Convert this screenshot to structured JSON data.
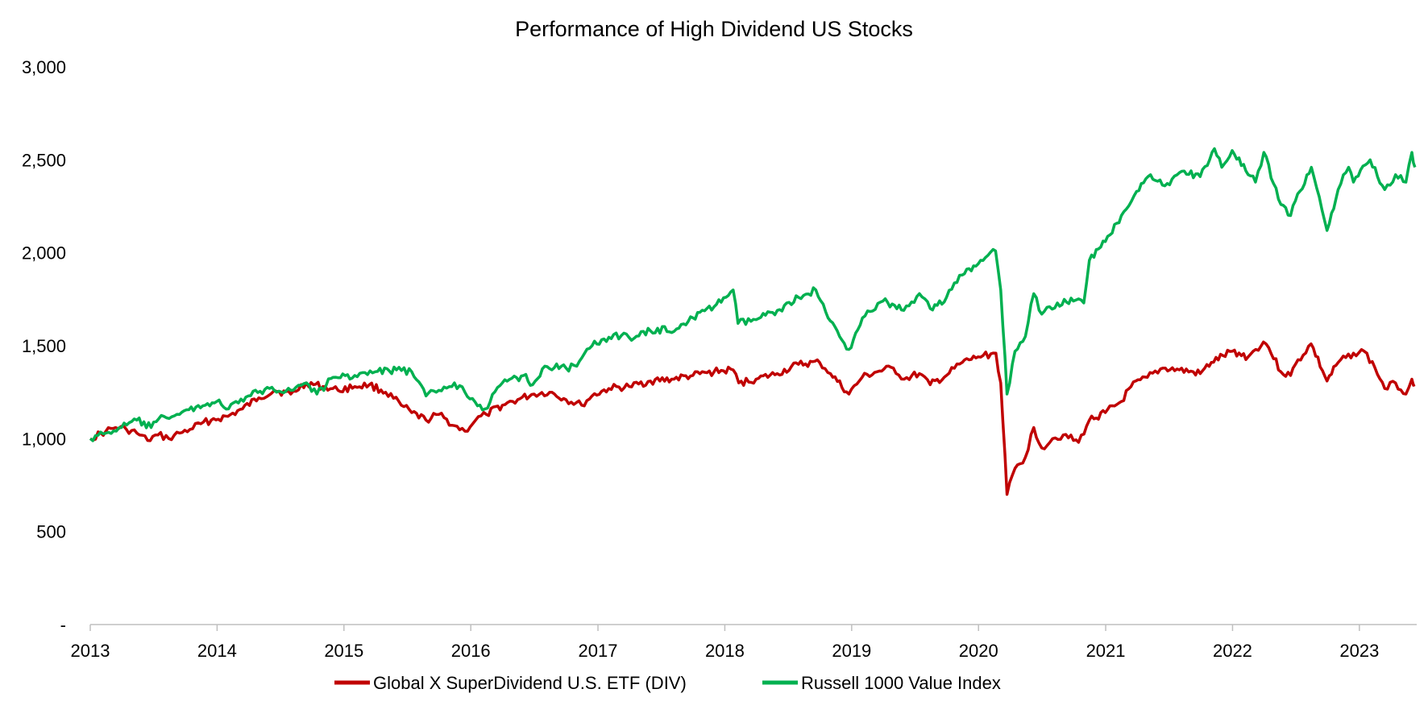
{
  "chart_data": {
    "type": "line",
    "title": "Performance of High Dividend US Stocks",
    "xlabel": "",
    "ylabel": "",
    "x_range": [
      "2013-01-01",
      "2023-06-15"
    ],
    "ylim": [
      0,
      3000
    ],
    "y_ticks": [
      {
        "value": 0,
        "label": "-"
      },
      {
        "value": 500,
        "label": "500"
      },
      {
        "value": 1000,
        "label": "1,000"
      },
      {
        "value": 1500,
        "label": "1,500"
      },
      {
        "value": 2000,
        "label": "2,000"
      },
      {
        "value": 2500,
        "label": "2,500"
      },
      {
        "value": 3000,
        "label": "3,000"
      }
    ],
    "x_ticks": [
      {
        "value": "2013-01-01",
        "label": "2013"
      },
      {
        "value": "2014-01-01",
        "label": "2014"
      },
      {
        "value": "2015-01-01",
        "label": "2015"
      },
      {
        "value": "2016-01-01",
        "label": "2016"
      },
      {
        "value": "2017-01-01",
        "label": "2017"
      },
      {
        "value": "2018-01-01",
        "label": "2018"
      },
      {
        "value": "2019-01-01",
        "label": "2019"
      },
      {
        "value": "2020-01-01",
        "label": "2020"
      },
      {
        "value": "2021-01-01",
        "label": "2021"
      },
      {
        "value": "2022-01-01",
        "label": "2022"
      },
      {
        "value": "2023-01-01",
        "label": "2023"
      }
    ],
    "grid": false,
    "legend_position": "bottom",
    "series": [
      {
        "name": "Global X SuperDividend U.S. ETF (DIV)",
        "color": "#C00000",
        "points": [
          [
            "2013-01-01",
            1000
          ],
          [
            "2013-02-15",
            1040
          ],
          [
            "2013-03-15",
            1060
          ],
          [
            "2013-04-15",
            1050
          ],
          [
            "2013-05-15",
            1030
          ],
          [
            "2013-06-15",
            990
          ],
          [
            "2013-07-15",
            1020
          ],
          [
            "2013-08-15",
            1000
          ],
          [
            "2013-09-15",
            1030
          ],
          [
            "2013-10-15",
            1050
          ],
          [
            "2013-11-15",
            1080
          ],
          [
            "2013-12-15",
            1100
          ],
          [
            "2014-02-01",
            1120
          ],
          [
            "2014-03-15",
            1160
          ],
          [
            "2014-05-01",
            1220
          ],
          [
            "2014-06-15",
            1260
          ],
          [
            "2014-08-01",
            1240
          ],
          [
            "2014-09-15",
            1300
          ],
          [
            "2014-11-01",
            1280
          ],
          [
            "2014-12-15",
            1260
          ],
          [
            "2015-02-01",
            1280
          ],
          [
            "2015-03-15",
            1290
          ],
          [
            "2015-05-01",
            1250
          ],
          [
            "2015-06-15",
            1180
          ],
          [
            "2015-07-15",
            1140
          ],
          [
            "2015-08-25",
            1100
          ],
          [
            "2015-10-01",
            1130
          ],
          [
            "2015-11-15",
            1070
          ],
          [
            "2015-12-15",
            1040
          ],
          [
            "2016-01-15",
            1100
          ],
          [
            "2016-02-15",
            1130
          ],
          [
            "2016-04-01",
            1180
          ],
          [
            "2016-05-15",
            1210
          ],
          [
            "2016-07-01",
            1240
          ],
          [
            "2016-08-15",
            1250
          ],
          [
            "2016-10-01",
            1210
          ],
          [
            "2016-11-15",
            1180
          ],
          [
            "2016-12-15",
            1230
          ],
          [
            "2017-02-01",
            1270
          ],
          [
            "2017-04-01",
            1280
          ],
          [
            "2017-06-01",
            1310
          ],
          [
            "2017-08-01",
            1320
          ],
          [
            "2017-10-01",
            1340
          ],
          [
            "2017-12-01",
            1360
          ],
          [
            "2018-01-25",
            1370
          ],
          [
            "2018-02-10",
            1300
          ],
          [
            "2018-04-01",
            1320
          ],
          [
            "2018-06-01",
            1350
          ],
          [
            "2018-08-01",
            1400
          ],
          [
            "2018-10-01",
            1410
          ],
          [
            "2018-11-01",
            1350
          ],
          [
            "2018-12-24",
            1240
          ],
          [
            "2019-01-31",
            1330
          ],
          [
            "2019-03-15",
            1360
          ],
          [
            "2019-05-01",
            1380
          ],
          [
            "2019-06-01",
            1320
          ],
          [
            "2019-07-15",
            1350
          ],
          [
            "2019-08-15",
            1290
          ],
          [
            "2019-10-01",
            1340
          ],
          [
            "2019-11-15",
            1410
          ],
          [
            "2019-12-31",
            1440
          ],
          [
            "2020-02-20",
            1460
          ],
          [
            "2020-03-05",
            1300
          ],
          [
            "2020-03-23",
            700
          ],
          [
            "2020-04-15",
            840
          ],
          [
            "2020-05-15",
            900
          ],
          [
            "2020-06-08",
            1060
          ],
          [
            "2020-07-01",
            950
          ],
          [
            "2020-08-01",
            1000
          ],
          [
            "2020-09-01",
            1020
          ],
          [
            "2020-10-15",
            980
          ],
          [
            "2020-11-15",
            1100
          ],
          [
            "2020-12-31",
            1140
          ],
          [
            "2021-02-15",
            1200
          ],
          [
            "2021-03-15",
            1280
          ],
          [
            "2021-05-01",
            1330
          ],
          [
            "2021-06-15",
            1380
          ],
          [
            "2021-08-01",
            1370
          ],
          [
            "2021-09-30",
            1350
          ],
          [
            "2021-11-01",
            1410
          ],
          [
            "2021-12-31",
            1470
          ],
          [
            "2022-02-15",
            1440
          ],
          [
            "2022-03-31",
            1520
          ],
          [
            "2022-04-15",
            1490
          ],
          [
            "2022-05-20",
            1360
          ],
          [
            "2022-06-17",
            1340
          ],
          [
            "2022-07-01",
            1400
          ],
          [
            "2022-08-15",
            1510
          ],
          [
            "2022-09-30",
            1310
          ],
          [
            "2022-11-01",
            1410
          ],
          [
            "2022-12-15",
            1460
          ],
          [
            "2023-01-15",
            1470
          ],
          [
            "2023-02-15",
            1380
          ],
          [
            "2023-03-15",
            1270
          ],
          [
            "2023-04-15",
            1300
          ],
          [
            "2023-05-15",
            1240
          ],
          [
            "2023-06-01",
            1320
          ],
          [
            "2023-06-10",
            1290
          ]
        ]
      },
      {
        "name": "Russell 1000 Value Index",
        "color": "#00B050",
        "points": [
          [
            "2013-01-01",
            1000
          ],
          [
            "2013-02-15",
            1030
          ],
          [
            "2013-04-01",
            1060
          ],
          [
            "2013-05-15",
            1100
          ],
          [
            "2013-06-25",
            1060
          ],
          [
            "2013-08-01",
            1120
          ],
          [
            "2013-09-15",
            1130
          ],
          [
            "2013-11-01",
            1170
          ],
          [
            "2013-12-31",
            1200
          ],
          [
            "2014-02-03",
            1160
          ],
          [
            "2014-04-01",
            1230
          ],
          [
            "2014-06-01",
            1270
          ],
          [
            "2014-08-01",
            1260
          ],
          [
            "2014-09-15",
            1300
          ],
          [
            "2014-10-15",
            1240
          ],
          [
            "2014-12-01",
            1330
          ],
          [
            "2015-02-01",
            1340
          ],
          [
            "2015-04-01",
            1360
          ],
          [
            "2015-06-01",
            1370
          ],
          [
            "2015-07-15",
            1360
          ],
          [
            "2015-08-25",
            1230
          ],
          [
            "2015-10-01",
            1260
          ],
          [
            "2015-11-15",
            1300
          ],
          [
            "2015-12-15",
            1250
          ],
          [
            "2016-02-11",
            1160
          ],
          [
            "2016-04-01",
            1300
          ],
          [
            "2016-06-01",
            1340
          ],
          [
            "2016-06-27",
            1290
          ],
          [
            "2016-08-01",
            1390
          ],
          [
            "2016-10-01",
            1380
          ],
          [
            "2016-11-01",
            1390
          ],
          [
            "2016-12-15",
            1500
          ],
          [
            "2017-02-15",
            1560
          ],
          [
            "2017-04-15",
            1540
          ],
          [
            "2017-06-01",
            1580
          ],
          [
            "2017-08-15",
            1590
          ],
          [
            "2017-10-01",
            1650
          ],
          [
            "2017-12-01",
            1710
          ],
          [
            "2018-01-25",
            1800
          ],
          [
            "2018-02-08",
            1620
          ],
          [
            "2018-04-01",
            1640
          ],
          [
            "2018-06-01",
            1690
          ],
          [
            "2018-08-01",
            1760
          ],
          [
            "2018-09-20",
            1800
          ],
          [
            "2018-10-25",
            1650
          ],
          [
            "2018-12-24",
            1480
          ],
          [
            "2019-02-01",
            1650
          ],
          [
            "2019-04-01",
            1740
          ],
          [
            "2019-05-31",
            1690
          ],
          [
            "2019-07-15",
            1780
          ],
          [
            "2019-08-15",
            1700
          ],
          [
            "2019-10-01",
            1760
          ],
          [
            "2019-11-15",
            1880
          ],
          [
            "2019-12-31",
            1940
          ],
          [
            "2020-02-19",
            2010
          ],
          [
            "2020-03-05",
            1800
          ],
          [
            "2020-03-23",
            1240
          ],
          [
            "2020-04-15",
            1470
          ],
          [
            "2020-05-15",
            1550
          ],
          [
            "2020-06-08",
            1780
          ],
          [
            "2020-07-01",
            1670
          ],
          [
            "2020-08-15",
            1730
          ],
          [
            "2020-09-30",
            1740
          ],
          [
            "2020-10-30",
            1730
          ],
          [
            "2020-11-15",
            1960
          ],
          [
            "2020-12-31",
            2060
          ],
          [
            "2021-02-15",
            2200
          ],
          [
            "2021-03-31",
            2330
          ],
          [
            "2021-05-10",
            2420
          ],
          [
            "2021-06-20",
            2360
          ],
          [
            "2021-08-15",
            2440
          ],
          [
            "2021-09-30",
            2410
          ],
          [
            "2021-11-10",
            2560
          ],
          [
            "2021-12-01",
            2460
          ],
          [
            "2021-12-31",
            2550
          ],
          [
            "2022-02-15",
            2420
          ],
          [
            "2022-03-08",
            2380
          ],
          [
            "2022-04-01",
            2540
          ],
          [
            "2022-05-20",
            2260
          ],
          [
            "2022-06-17",
            2200
          ],
          [
            "2022-07-01",
            2280
          ],
          [
            "2022-08-16",
            2460
          ],
          [
            "2022-09-30",
            2120
          ],
          [
            "2022-11-01",
            2340
          ],
          [
            "2022-12-01",
            2460
          ],
          [
            "2022-12-15",
            2380
          ],
          [
            "2023-02-01",
            2500
          ],
          [
            "2023-03-15",
            2340
          ],
          [
            "2023-04-15",
            2420
          ],
          [
            "2023-05-15",
            2380
          ],
          [
            "2023-06-01",
            2540
          ],
          [
            "2023-06-10",
            2460
          ]
        ]
      }
    ]
  }
}
